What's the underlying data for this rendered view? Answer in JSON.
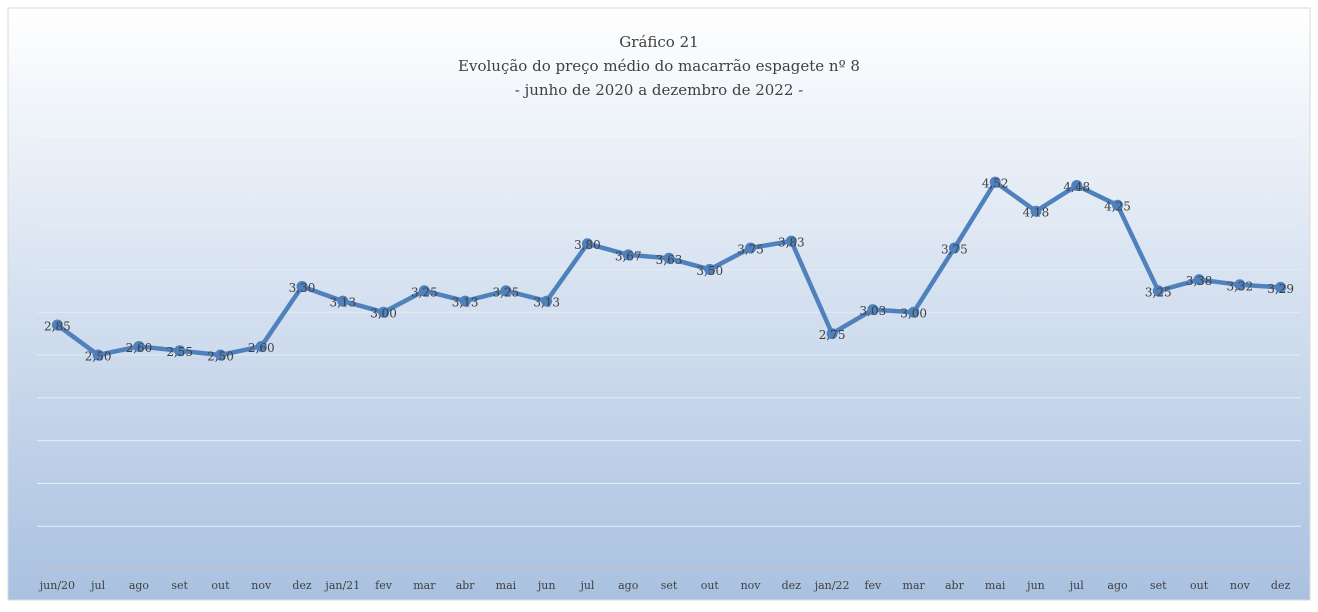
{
  "chart_data": {
    "type": "line",
    "title": "Gráfico 21",
    "subtitle": "Evolução do preço médio do macarrão espagete nº 8",
    "subtitle2": "- junho de 2020 a dezembro de 2022 -",
    "categories": [
      "jun/20",
      "jul",
      "ago",
      "set",
      "out",
      "nov",
      "dez",
      "jan/21",
      "fev",
      "mar",
      "abr",
      "mai",
      "jun",
      "jul",
      "ago",
      "set",
      "out",
      "nov",
      "dez",
      "jan/22",
      "fev",
      "mar",
      "abr",
      "mai",
      "jun",
      "jul",
      "ago",
      "set",
      "out",
      "nov",
      "dez"
    ],
    "values": [
      2.85,
      2.5,
      2.6,
      2.55,
      2.5,
      2.6,
      3.3,
      3.13,
      3.0,
      3.25,
      3.13,
      3.25,
      3.13,
      3.8,
      3.67,
      3.63,
      3.5,
      3.75,
      3.83,
      2.75,
      3.03,
      3.0,
      3.75,
      4.52,
      4.18,
      4.48,
      4.25,
      3.25,
      3.38,
      3.32,
      3.29
    ],
    "value_labels": [
      "2,85",
      "2,50",
      "2,60",
      "2,55",
      "2,50",
      "2,60",
      "3,30",
      "3,13",
      "3,00",
      "3,25",
      "3,13",
      "3,25",
      "3,13",
      "3,80",
      "3,67",
      "3,63",
      "3,50",
      "3,75",
      "3,83",
      "2,75",
      "3,03",
      "3,00",
      "3,75",
      "4,52",
      "4,18",
      "4,48",
      "4,25",
      "3,25",
      "3,38",
      "3,32",
      "3,29"
    ],
    "color": "#4f81bd",
    "ylim": [
      0,
      5
    ],
    "yticks": [
      0,
      0.5,
      1,
      1.5,
      2,
      2.5,
      3,
      3.5,
      4,
      4.5,
      5
    ],
    "grid": true
  }
}
